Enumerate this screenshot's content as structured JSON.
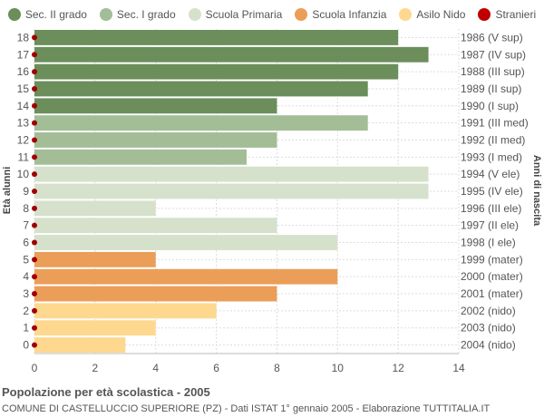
{
  "legend": [
    {
      "label": "Sec. II grado",
      "color": "#6b8e5a"
    },
    {
      "label": "Sec. I grado",
      "color": "#a3bd96"
    },
    {
      "label": "Scuola Primaria",
      "color": "#d6e1cc"
    },
    {
      "label": "Scuola Infanzia",
      "color": "#eb9e58"
    },
    {
      "label": "Asilo Nido",
      "color": "#fdd88e"
    },
    {
      "label": "Stranieri",
      "color": "#c00000"
    }
  ],
  "footer": {
    "title": "Popolazione per età scolastica - 2005",
    "subtitle": "COMUNE DI CASTELLUCCIO SUPERIORE (PZ) - Dati ISTAT 1° gennaio 2005 - Elaborazione TUTTITALIA.IT"
  },
  "chart_data": {
    "type": "bar",
    "orientation": "horizontal",
    "ylabel_left": "Età alunni",
    "ylabel_right": "Anni di nascita",
    "xlim": [
      0,
      14
    ],
    "xticks": [
      0,
      2,
      4,
      6,
      8,
      10,
      12,
      14
    ],
    "grid": true,
    "legend_position": "top",
    "rows": [
      {
        "age": "18",
        "year": "1986 (V sup)",
        "value": 12,
        "group": "Sec. II grado",
        "stranieri": 0
      },
      {
        "age": "17",
        "year": "1987 (IV sup)",
        "value": 13,
        "group": "Sec. II grado",
        "stranieri": 0
      },
      {
        "age": "16",
        "year": "1988 (III sup)",
        "value": 12,
        "group": "Sec. II grado",
        "stranieri": 0
      },
      {
        "age": "15",
        "year": "1989 (II sup)",
        "value": 11,
        "group": "Sec. II grado",
        "stranieri": 0
      },
      {
        "age": "14",
        "year": "1990 (I sup)",
        "value": 8,
        "group": "Sec. II grado",
        "stranieri": 0
      },
      {
        "age": "13",
        "year": "1991 (III med)",
        "value": 11,
        "group": "Sec. I grado",
        "stranieri": 0
      },
      {
        "age": "12",
        "year": "1992 (II med)",
        "value": 8,
        "group": "Sec. I grado",
        "stranieri": 0
      },
      {
        "age": "11",
        "year": "1993 (I med)",
        "value": 7,
        "group": "Sec. I grado",
        "stranieri": 0
      },
      {
        "age": "10",
        "year": "1994 (V ele)",
        "value": 13,
        "group": "Scuola Primaria",
        "stranieri": 0
      },
      {
        "age": "9",
        "year": "1995 (IV ele)",
        "value": 13,
        "group": "Scuola Primaria",
        "stranieri": 0
      },
      {
        "age": "8",
        "year": "1996 (III ele)",
        "value": 4,
        "group": "Scuola Primaria",
        "stranieri": 0
      },
      {
        "age": "7",
        "year": "1997 (II ele)",
        "value": 8,
        "group": "Scuola Primaria",
        "stranieri": 0
      },
      {
        "age": "6",
        "year": "1998 (I ele)",
        "value": 10,
        "group": "Scuola Primaria",
        "stranieri": 0
      },
      {
        "age": "5",
        "year": "1999 (mater)",
        "value": 4,
        "group": "Scuola Infanzia",
        "stranieri": 0
      },
      {
        "age": "4",
        "year": "2000 (mater)",
        "value": 10,
        "group": "Scuola Infanzia",
        "stranieri": 0
      },
      {
        "age": "3",
        "year": "2001 (mater)",
        "value": 8,
        "group": "Scuola Infanzia",
        "stranieri": 0
      },
      {
        "age": "2",
        "year": "2002 (nido)",
        "value": 6,
        "group": "Asilo Nido",
        "stranieri": 0
      },
      {
        "age": "1",
        "year": "2003 (nido)",
        "value": 4,
        "group": "Asilo Nido",
        "stranieri": 0
      },
      {
        "age": "0",
        "year": "2004 (nido)",
        "value": 3,
        "group": "Asilo Nido",
        "stranieri": 0
      }
    ]
  }
}
